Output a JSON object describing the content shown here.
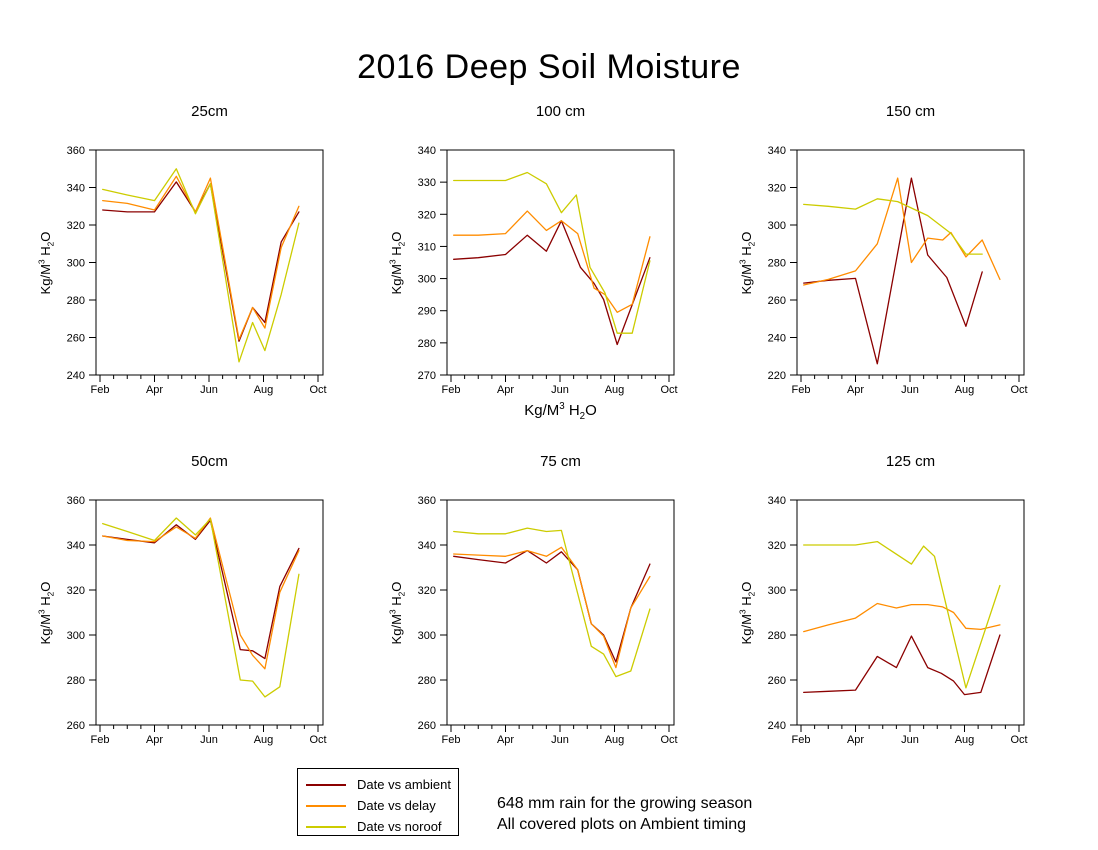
{
  "title": "2016 Deep Soil Moisture",
  "axis_label": {
    "base1": "Kg/M",
    "sup": "3",
    "base2": " H",
    "sub": "2",
    "base3": "O"
  },
  "x_axis": {
    "labels": [
      "Feb",
      "Apr",
      "Jun",
      "Aug",
      "Oct"
    ],
    "major_months": [
      2,
      4,
      6,
      8,
      10
    ],
    "minor_step": 0.5,
    "range": [
      2,
      10
    ]
  },
  "legend": {
    "items": [
      {
        "label": "Date vs ambient",
        "color": "#8B0000"
      },
      {
        "label": "Date vs delay",
        "color": "#FF8C00"
      },
      {
        "label": "Date vs noroof",
        "color": "#CCCC00"
      }
    ]
  },
  "footer": {
    "line1": "648 mm rain for the growing season",
    "line2": "All covered plots on Ambient timing"
  },
  "chart_data": [
    {
      "type": "line",
      "title": "25cm",
      "ylim": [
        240,
        360
      ],
      "ytick_step": 20,
      "xlim": [
        2,
        10
      ],
      "xtick_labels": [
        "Feb",
        "Apr",
        "Jun",
        "Aug",
        "Oct"
      ],
      "series": [
        {
          "name": "Date vs ambient",
          "color": "#8B0000",
          "x": [
            2.1,
            3.0,
            4.0,
            4.8,
            5.5,
            6.05,
            7.1,
            7.6,
            8.05,
            8.65,
            9.3
          ],
          "y": [
            328,
            327,
            327,
            343,
            327,
            342,
            258,
            276,
            268,
            311,
            327
          ]
        },
        {
          "name": "Date vs delay",
          "color": "#FF8C00",
          "x": [
            2.1,
            3.0,
            4.0,
            4.8,
            5.5,
            6.05,
            7.1,
            7.6,
            8.05,
            8.65,
            9.3
          ],
          "y": [
            333,
            331.5,
            328,
            346,
            327,
            345,
            259,
            276,
            265,
            308,
            330
          ]
        },
        {
          "name": "Date vs noroof",
          "color": "#CCCC00",
          "x": [
            2.1,
            3.0,
            4.0,
            4.8,
            5.5,
            6.05,
            7.1,
            7.6,
            8.05,
            8.65,
            9.3
          ],
          "y": [
            339,
            336,
            333,
            350,
            326,
            342,
            247,
            268,
            253,
            283,
            321
          ]
        }
      ]
    },
    {
      "type": "line",
      "title": "100 cm",
      "ylim": [
        270,
        340
      ],
      "ytick_step": 10,
      "xlim": [
        2,
        10
      ],
      "xtick_labels": [
        "Feb",
        "Apr",
        "Jun",
        "Aug",
        "Oct"
      ],
      "has_x_label": true,
      "series": [
        {
          "name": "Date vs ambient",
          "color": "#8B0000",
          "x": [
            2.1,
            3.0,
            4.0,
            4.8,
            5.5,
            6.05,
            6.75,
            7.25,
            7.6,
            8.1,
            9.3
          ],
          "y": [
            306,
            306.5,
            307.5,
            313.5,
            308.5,
            318,
            303.5,
            298.5,
            293.5,
            279.5,
            306.5
          ]
        },
        {
          "name": "Date vs delay",
          "color": "#FF8C00",
          "x": [
            2.1,
            3.0,
            4.0,
            4.8,
            5.5,
            6.05,
            6.65,
            7.25,
            7.65,
            8.1,
            8.65,
            9.3
          ],
          "y": [
            313.5,
            313.5,
            314,
            321,
            315,
            318,
            314,
            297,
            295,
            289.5,
            292,
            313
          ]
        },
        {
          "name": "Date vs noroof",
          "color": "#CCCC00",
          "x": [
            2.1,
            3.0,
            4.0,
            4.8,
            5.5,
            6.05,
            6.6,
            7.1,
            7.65,
            8.1,
            8.65,
            9.3
          ],
          "y": [
            330.5,
            330.5,
            330.5,
            333,
            329.5,
            320.5,
            326,
            303.5,
            295.5,
            283,
            283,
            305.5
          ]
        }
      ]
    },
    {
      "type": "line",
      "title": "150 cm",
      "ylim": [
        220,
        340
      ],
      "ytick_step": 20,
      "xlim": [
        2,
        10
      ],
      "xtick_labels": [
        "Feb",
        "Apr",
        "Jun",
        "Aug",
        "Oct"
      ],
      "series": [
        {
          "name": "Date vs ambient",
          "color": "#8B0000",
          "x": [
            2.1,
            3.0,
            4.0,
            4.8,
            6.05,
            6.65,
            7.35,
            8.05,
            8.65
          ],
          "y": [
            269,
            270.5,
            271.5,
            226,
            325,
            284,
            272,
            246,
            275
          ]
        },
        {
          "name": "Date vs delay",
          "color": "#FF8C00",
          "x": [
            2.1,
            3.0,
            4.0,
            4.8,
            5.55,
            6.05,
            6.65,
            7.2,
            7.5,
            8.05,
            8.65,
            9.3
          ],
          "y": [
            268,
            271,
            275.5,
            290,
            325,
            280,
            293,
            292,
            296,
            283,
            292,
            271
          ]
        },
        {
          "name": "Date vs noroof",
          "color": "#CCCC00",
          "x": [
            2.1,
            3.0,
            4.0,
            4.8,
            5.55,
            6.65,
            7.5,
            8.05,
            8.65
          ],
          "y": [
            311,
            310,
            308.5,
            314,
            312.5,
            305,
            295.5,
            284.5,
            284.5
          ]
        }
      ]
    },
    {
      "type": "line",
      "title": "50cm",
      "ylim": [
        260,
        360
      ],
      "ytick_step": 20,
      "xlim": [
        2,
        10
      ],
      "xtick_labels": [
        "Feb",
        "Apr",
        "Jun",
        "Aug",
        "Oct"
      ],
      "series": [
        {
          "name": "Date vs ambient",
          "color": "#8B0000",
          "x": [
            2.1,
            3.0,
            4.0,
            4.8,
            5.5,
            6.05,
            7.15,
            7.6,
            8.05,
            8.6,
            9.3
          ],
          "y": [
            344,
            342.5,
            341,
            349,
            342.5,
            351,
            293.5,
            293,
            289.5,
            321.5,
            338.5
          ]
        },
        {
          "name": "Date vs delay",
          "color": "#FF8C00",
          "x": [
            2.1,
            3.0,
            4.0,
            4.8,
            5.5,
            6.05,
            7.15,
            7.6,
            8.05,
            8.6,
            9.3
          ],
          "y": [
            344,
            342,
            341.5,
            348,
            343,
            352,
            300,
            291,
            285,
            319,
            337.5
          ]
        },
        {
          "name": "Date vs noroof",
          "color": "#CCCC00",
          "x": [
            2.1,
            3.0,
            4.0,
            4.8,
            5.5,
            6.05,
            7.15,
            7.6,
            8.05,
            8.6,
            9.3
          ],
          "y": [
            349.5,
            346,
            342,
            352,
            344.5,
            351.5,
            280,
            279.5,
            272.5,
            277,
            327
          ]
        }
      ]
    },
    {
      "type": "line",
      "title": "75 cm",
      "ylim": [
        260,
        360
      ],
      "ytick_step": 20,
      "xlim": [
        2,
        10
      ],
      "xtick_labels": [
        "Feb",
        "Apr",
        "Jun",
        "Aug",
        "Oct"
      ],
      "series": [
        {
          "name": "Date vs ambient",
          "color": "#8B0000",
          "x": [
            2.1,
            3.0,
            4.0,
            4.8,
            5.5,
            6.05,
            6.65,
            7.15,
            7.6,
            8.05,
            8.6,
            9.3
          ],
          "y": [
            335,
            333.5,
            332,
            337.5,
            332,
            337,
            329,
            305,
            300,
            288,
            312,
            331.5
          ]
        },
        {
          "name": "Date vs delay",
          "color": "#FF8C00",
          "x": [
            2.1,
            3.0,
            4.0,
            4.8,
            5.5,
            6.05,
            6.65,
            7.15,
            7.6,
            8.05,
            8.6,
            9.3
          ],
          "y": [
            336,
            335.5,
            335,
            337.5,
            335,
            339,
            329,
            305,
            299.5,
            285.5,
            312,
            326
          ]
        },
        {
          "name": "Date vs noroof",
          "color": "#CCCC00",
          "x": [
            2.1,
            3.0,
            4.0,
            4.8,
            5.5,
            6.05,
            7.15,
            7.6,
            8.05,
            8.6,
            9.3
          ],
          "y": [
            346,
            345,
            345,
            347.5,
            346,
            346.5,
            295,
            291.5,
            281.5,
            284,
            311.5
          ]
        }
      ]
    },
    {
      "type": "line",
      "title": "125 cm",
      "ylim": [
        240,
        340
      ],
      "ytick_step": 20,
      "xlim": [
        2,
        10
      ],
      "xtick_labels": [
        "Feb",
        "Apr",
        "Jun",
        "Aug",
        "Oct"
      ],
      "series": [
        {
          "name": "Date vs ambient",
          "color": "#8B0000",
          "x": [
            2.1,
            3.0,
            4.0,
            4.8,
            5.5,
            6.05,
            6.65,
            7.15,
            7.6,
            8.0,
            8.6,
            9.3
          ],
          "y": [
            254.5,
            255,
            255.5,
            270.5,
            265.5,
            279.5,
            265.5,
            263,
            259.5,
            253.5,
            254.5,
            280
          ]
        },
        {
          "name": "Date vs delay",
          "color": "#FF8C00",
          "x": [
            2.1,
            3.0,
            4.0,
            4.8,
            5.5,
            6.05,
            6.65,
            7.2,
            7.6,
            8.05,
            8.6,
            9.3
          ],
          "y": [
            281.5,
            284.5,
            287.5,
            294,
            292,
            293.5,
            293.5,
            292.5,
            290,
            283,
            282.5,
            284.5
          ]
        },
        {
          "name": "Date vs noroof",
          "color": "#CCCC00",
          "x": [
            2.1,
            3.0,
            4.0,
            4.8,
            6.05,
            6.5,
            6.9,
            8.05,
            9.3
          ],
          "y": [
            320,
            320,
            320,
            321.5,
            311.5,
            319.5,
            315,
            256.5,
            302
          ]
        }
      ]
    }
  ]
}
